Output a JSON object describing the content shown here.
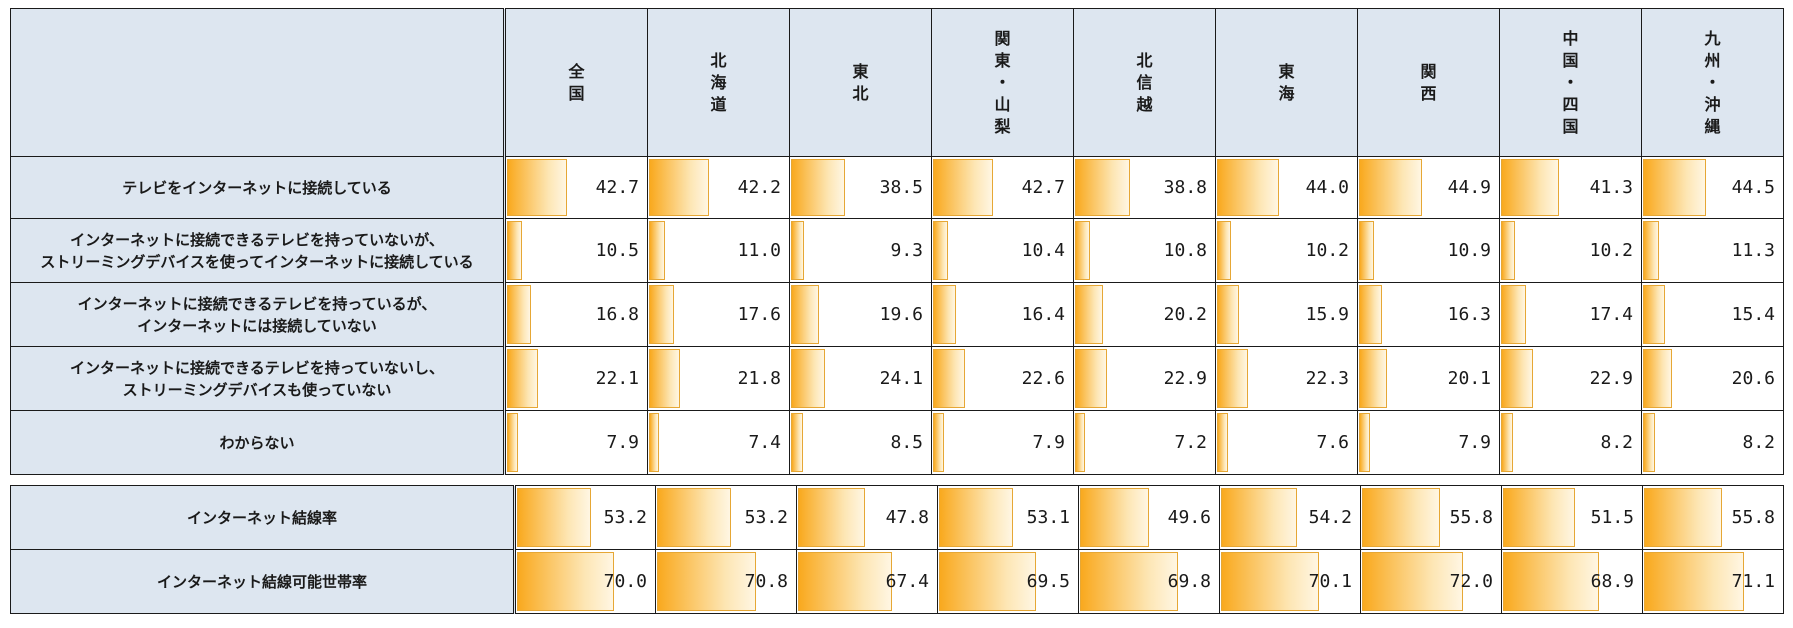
{
  "chart_data": {
    "type": "table",
    "columns": [
      {
        "name": "全国",
        "lines": [
          "全",
          "国"
        ]
      },
      {
        "name": "北海道",
        "lines": [
          "北",
          "海",
          "道"
        ]
      },
      {
        "name": "東北",
        "lines": [
          "東",
          "北"
        ]
      },
      {
        "name": "関東・山梨",
        "lines": [
          "関",
          "東",
          "・",
          "山",
          "梨"
        ]
      },
      {
        "name": "北信越",
        "lines": [
          "北",
          "信",
          "越"
        ]
      },
      {
        "name": "東海",
        "lines": [
          "東",
          "海"
        ]
      },
      {
        "name": "関西",
        "lines": [
          "関",
          "西"
        ]
      },
      {
        "name": "中国・四国",
        "lines": [
          "中",
          "国",
          "・",
          "四",
          "国"
        ]
      },
      {
        "name": "九州・沖縄",
        "lines": [
          "九",
          "州",
          "・",
          "沖",
          "縄"
        ]
      }
    ],
    "bar_max": 100,
    "tables": [
      {
        "rows": [
          {
            "label": [
              "テレビをインターネットに接続している"
            ],
            "values": [
              "42.7",
              "42.2",
              "38.5",
              "42.7",
              "38.8",
              "44.0",
              "44.9",
              "41.3",
              "44.5"
            ]
          },
          {
            "label": [
              "インターネットに接続できるテレビを持っていないが、",
              "ストリーミングデバイスを使ってインターネットに接続している"
            ],
            "values": [
              "10.5",
              "11.0",
              "9.3",
              "10.4",
              "10.8",
              "10.2",
              "10.9",
              "10.2",
              "11.3"
            ]
          },
          {
            "label": [
              "インターネットに接続できるテレビを持っているが、",
              "インターネットには接続していない"
            ],
            "values": [
              "16.8",
              "17.6",
              "19.6",
              "16.4",
              "20.2",
              "15.9",
              "16.3",
              "17.4",
              "15.4"
            ]
          },
          {
            "label": [
              "インターネットに接続できるテレビを持っていないし、",
              "ストリーミングデバイスも使っていない"
            ],
            "values": [
              "22.1",
              "21.8",
              "24.1",
              "22.6",
              "22.9",
              "22.3",
              "20.1",
              "22.9",
              "20.6"
            ]
          },
          {
            "label": [
              "わからない"
            ],
            "values": [
              "7.9",
              "7.4",
              "8.5",
              "7.9",
              "7.2",
              "7.6",
              "7.9",
              "8.2",
              "8.2"
            ]
          }
        ]
      },
      {
        "rows": [
          {
            "label": [
              "インターネット結線率"
            ],
            "values": [
              "53.2",
              "53.2",
              "47.8",
              "53.1",
              "49.6",
              "54.2",
              "55.8",
              "51.5",
              "55.8"
            ]
          },
          {
            "label": [
              "インターネット結線可能世帯率"
            ],
            "values": [
              "70.0",
              "70.8",
              "67.4",
              "69.5",
              "69.8",
              "70.1",
              "72.0",
              "68.9",
              "71.1"
            ]
          }
        ]
      }
    ],
    "bar_color": "#f9a91e",
    "header_bg": "#dde6f0"
  }
}
